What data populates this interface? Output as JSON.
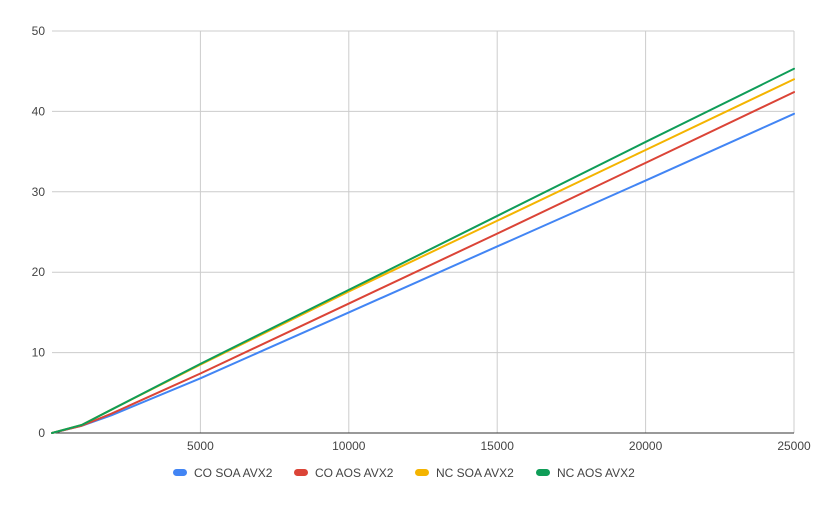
{
  "chart_data": {
    "type": "line",
    "title": "",
    "xlabel": "",
    "ylabel": "",
    "xlim": [
      0,
      25000
    ],
    "ylim": [
      0,
      50
    ],
    "x_ticks": [
      5000,
      10000,
      15000,
      20000,
      25000
    ],
    "x_tick_labels": [
      "5000",
      "10000",
      "15000",
      "20000",
      "25000"
    ],
    "y_ticks": [
      0,
      10,
      20,
      30,
      40,
      50
    ],
    "y_tick_labels": [
      "0",
      "10",
      "20",
      "30",
      "40",
      "50"
    ],
    "grid": true,
    "legend_position": "bottom",
    "x": [
      0,
      1000,
      2000,
      5000,
      10000,
      15000,
      20000,
      25000
    ],
    "series": [
      {
        "name": "CO SOA AVX2",
        "color": "#4285F4",
        "values": [
          0,
          0.9,
          2.2,
          6.8,
          15.0,
          23.2,
          31.4,
          39.7
        ]
      },
      {
        "name": "CO AOS AVX2",
        "color": "#DB4437",
        "values": [
          0,
          0.9,
          2.4,
          7.4,
          16.1,
          24.8,
          33.6,
          42.4
        ]
      },
      {
        "name": "NC SOA AVX2",
        "color": "#F4B400",
        "values": [
          0,
          1.0,
          2.9,
          8.5,
          17.6,
          26.4,
          35.2,
          44.0
        ]
      },
      {
        "name": "NC AOS AVX2",
        "color": "#0F9D58",
        "values": [
          0,
          1.0,
          2.9,
          8.6,
          17.8,
          27.0,
          36.2,
          45.3
        ]
      }
    ]
  }
}
